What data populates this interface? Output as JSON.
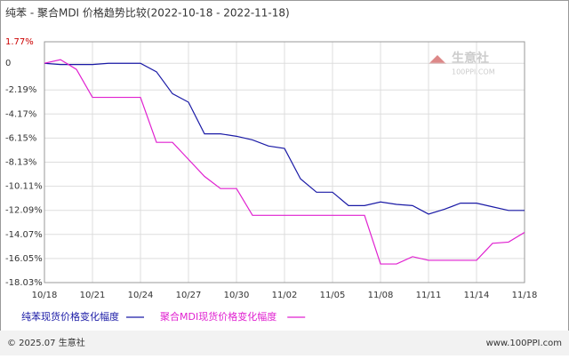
{
  "chart_data": {
    "type": "line",
    "title": "纯苯 - 聚合MDI 价格趋势比较(2022-10-18 - 2022-11-18)",
    "categories": [
      "10/18",
      null,
      null,
      "10/21",
      null,
      null,
      "10/24",
      null,
      null,
      "10/27",
      null,
      null,
      "10/30",
      null,
      null,
      "11/02",
      null,
      null,
      "11/05",
      null,
      null,
      "11/08",
      null,
      null,
      "11/11",
      null,
      null,
      "11/14",
      null,
      null,
      "11/18"
    ],
    "series": [
      {
        "name": "纯苯现货价格变化幅度",
        "color": "#1a1aa6",
        "values": [
          0,
          -0.1,
          -0.1,
          -0.1,
          0,
          0,
          0,
          -0.7,
          -2.5,
          -3.2,
          -5.8,
          -5.8,
          -6.0,
          -6.3,
          -6.8,
          -7.0,
          -9.5,
          -10.6,
          -10.6,
          -11.7,
          -11.7,
          -11.4,
          -11.6,
          -11.7,
          -12.4,
          -12.0,
          -11.5,
          -11.5,
          -11.8,
          -12.1,
          -12.1
        ]
      },
      {
        "name": "聚合MDI现货价格变化幅度",
        "color": "#e020d0",
        "values": [
          0,
          0.3,
          -0.5,
          -2.8,
          -2.8,
          -2.8,
          -2.8,
          -6.5,
          -6.5,
          -7.9,
          -9.3,
          -10.3,
          -10.3,
          -12.5,
          -12.5,
          -12.5,
          -12.5,
          -12.5,
          -12.5,
          -12.5,
          -12.5,
          -16.5,
          -16.5,
          -15.9,
          -16.2,
          -16.2,
          -16.2,
          -16.2,
          -14.8,
          -14.7,
          -13.9
        ]
      }
    ],
    "ylim": [
      -18.03,
      1.77
    ],
    "yticks": [
      {
        "value": 1.77,
        "label": "1.77%"
      },
      0,
      {
        "value": -2.19,
        "label": "-2.19%"
      },
      {
        "value": -4.17,
        "label": "-4.17%"
      },
      {
        "value": -6.15,
        "label": "-6.15%"
      },
      {
        "value": -8.13,
        "label": "-8.13%"
      },
      {
        "value": -10.11,
        "label": "-10.11%"
      },
      {
        "value": -12.09,
        "label": "-12.09%"
      },
      {
        "value": -14.07,
        "label": "-14.07%"
      },
      {
        "value": -16.05,
        "label": "-16.05%"
      },
      {
        "value": -18.03,
        "label": "-18.03%"
      }
    ],
    "grid": true
  },
  "watermark": {
    "brand": "生意社",
    "site": "100PPI.COM"
  },
  "footer": {
    "left": "© 2025.07 生意社",
    "right": "www.100PPI.com"
  }
}
